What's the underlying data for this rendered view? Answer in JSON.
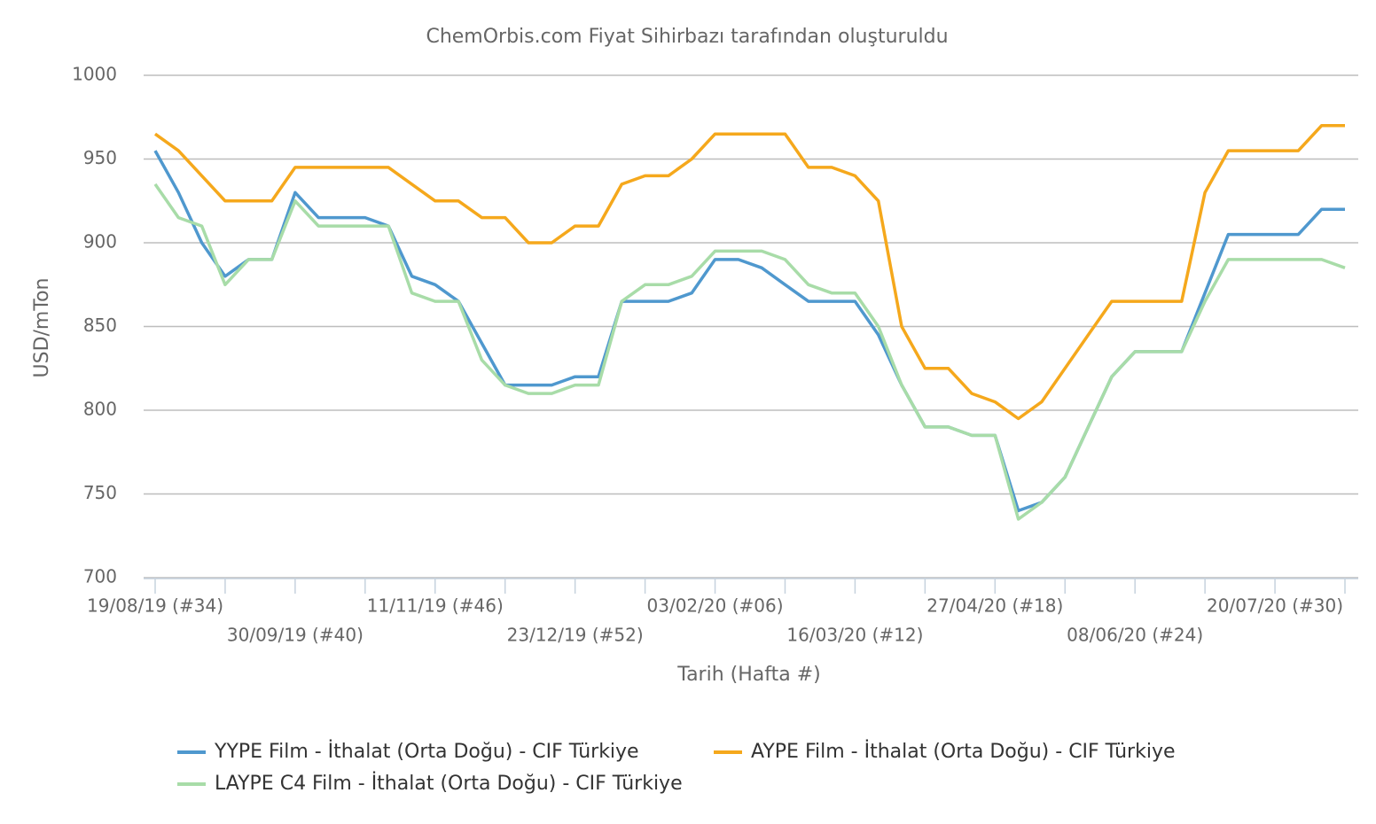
{
  "chart_data": {
    "type": "line",
    "title": "ChemOrbis.com Fiyat Sihirbazı tarafından oluşturuldu",
    "y_label": "USD/mTon",
    "x_label": "Tarih (Hafta #)",
    "categories": [
      "19/08/19 (#34)",
      null,
      null,
      null,
      null,
      null,
      "30/09/19 (#40)",
      null,
      null,
      null,
      null,
      null,
      "11/11/19 (#46)",
      null,
      null,
      null,
      null,
      null,
      "23/12/19 (#52)",
      null,
      null,
      null,
      null,
      null,
      "03/02/20 (#06)",
      null,
      null,
      null,
      null,
      null,
      "16/03/20 (#12)",
      null,
      null,
      null,
      null,
      null,
      "27/04/20 (#18)",
      null,
      null,
      null,
      null,
      null,
      "08/06/20 (#24)",
      null,
      null,
      null,
      null,
      null,
      "20/07/20 (#30)",
      null,
      null,
      null
    ],
    "series": [
      {
        "name": "YYPE Film - İthalat (Orta Doğu) - CIF Türkiye",
        "color": "#4f98ce",
        "values": [
          955,
          930,
          900,
          880,
          890,
          890,
          930,
          915,
          915,
          915,
          910,
          880,
          875,
          865,
          840,
          815,
          815,
          815,
          820,
          820,
          865,
          865,
          865,
          870,
          890,
          890,
          885,
          875,
          865,
          865,
          865,
          845,
          815,
          790,
          790,
          785,
          785,
          740,
          745,
          760,
          790,
          820,
          835,
          835,
          835,
          870,
          905,
          905,
          905,
          905,
          920,
          920
        ]
      },
      {
        "name": "AYPE Film - İthalat (Orta Doğu) - CIF Türkiye",
        "color": "#f5a81c",
        "values": [
          965,
          955,
          940,
          925,
          925,
          925,
          945,
          945,
          945,
          945,
          945,
          935,
          925,
          925,
          915,
          915,
          900,
          900,
          910,
          910,
          935,
          940,
          940,
          950,
          965,
          965,
          965,
          965,
          945,
          945,
          940,
          925,
          850,
          825,
          825,
          810,
          805,
          795,
          805,
          825,
          845,
          865,
          865,
          865,
          865,
          930,
          955,
          955,
          955,
          955,
          970,
          970
        ]
      },
      {
        "name": "LAYPE C4 Film - İthalat (Orta Doğu) - CIF Türkiye",
        "color": "#a8dca8",
        "values": [
          935,
          915,
          910,
          875,
          890,
          890,
          925,
          910,
          910,
          910,
          910,
          870,
          865,
          865,
          830,
          815,
          810,
          810,
          815,
          815,
          865,
          875,
          875,
          880,
          895,
          895,
          895,
          890,
          875,
          870,
          870,
          850,
          815,
          790,
          790,
          785,
          785,
          735,
          745,
          760,
          790,
          820,
          835,
          835,
          835,
          865,
          890,
          890,
          890,
          890,
          890,
          885
        ]
      }
    ],
    "ylim": [
      700,
      1000
    ],
    "yticks": [
      700,
      750,
      800,
      850,
      900,
      950,
      1000
    ],
    "grid": true,
    "legend": "bottom"
  }
}
